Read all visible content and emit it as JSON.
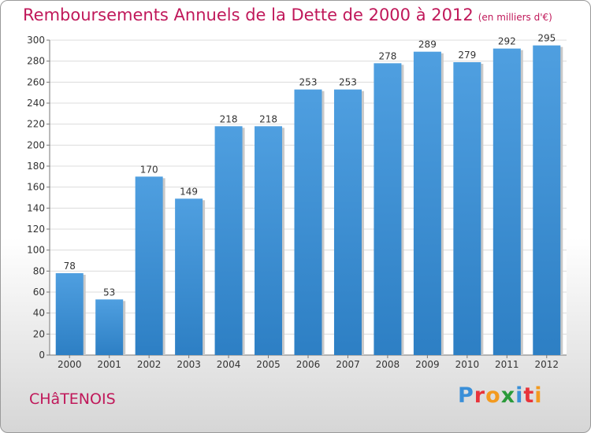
{
  "title": "Remboursements Annuels de la Dette de 2000 à 2012",
  "subtitle": "(en milliers d'€)",
  "city": "CHâTENOIS",
  "logo": {
    "text": "Proxiti",
    "letter_colors": [
      "#3a8fd8",
      "#e8333a",
      "#f39a1f",
      "#2a9a3a",
      "#3a8fd8",
      "#e8333a",
      "#f39a1f"
    ]
  },
  "colors": {
    "bar": "#4f9fe0",
    "bar_dark": "#2d7fc4",
    "title": "#c0185a",
    "grid": "#dcdcdc"
  },
  "chart_data": {
    "type": "bar",
    "title": "Remboursements Annuels de la Dette de 2000 à 2012",
    "subtitle": "(en milliers d'€)",
    "xlabel": "",
    "ylabel": "",
    "categories": [
      "2000",
      "2001",
      "2002",
      "2003",
      "2004",
      "2005",
      "2006",
      "2007",
      "2008",
      "2009",
      "2010",
      "2011",
      "2012"
    ],
    "values": [
      78,
      53,
      170,
      149,
      218,
      218,
      253,
      253,
      278,
      289,
      279,
      292,
      295
    ],
    "ylim": [
      0,
      300
    ],
    "yticks": [
      0,
      20,
      40,
      60,
      80,
      100,
      120,
      140,
      160,
      180,
      200,
      220,
      240,
      260,
      280,
      300
    ],
    "grid": true,
    "legend": "none"
  }
}
